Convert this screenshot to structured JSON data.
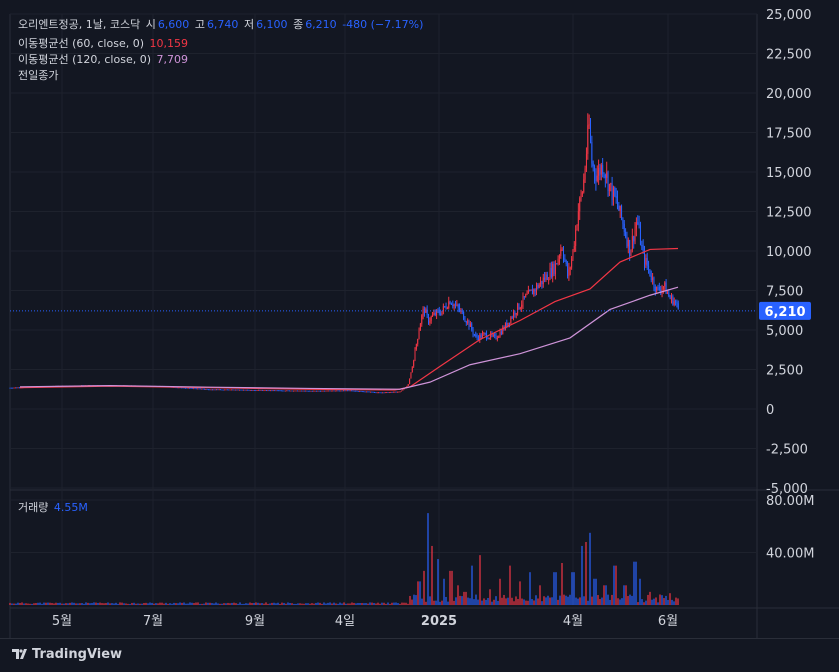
{
  "header": {
    "symbol": "오리엔트정공, 1날, 코스닥",
    "open_label": "시",
    "open": "6,600",
    "high_label": "고",
    "high": "6,740",
    "low_label": "저",
    "low": "6,100",
    "close_label": "종",
    "close": "6,210",
    "change": "-480 (−7.17%)"
  },
  "indicators": {
    "ma60_label": "이동평균선 (60, close, 0)",
    "ma60_value": "10,159",
    "ma120_label": "이동평균선 (120, close, 0)",
    "ma120_value": "7,709",
    "prev_close_label": "전일종가"
  },
  "volume_pane": {
    "label": "거래량",
    "value": "4.55M"
  },
  "price_tag": "6,210",
  "brand": "TradingView",
  "colors": {
    "up": "#2962ff",
    "down": "#f23645",
    "ma60": "#f23645",
    "ma120": "#ce93d8",
    "background": "#131722"
  },
  "chart_data": {
    "type": "candlestick",
    "price_axis": {
      "ylim": [
        -5000,
        25000
      ],
      "ticks": [
        "25,000",
        "22,500",
        "20,000",
        "17,500",
        "15,000",
        "12,500",
        "10,000",
        "7,500",
        "5,000",
        "2,500",
        "0",
        "-2,500",
        "-5,000"
      ]
    },
    "volume_axis": {
      "ticks": [
        "80.00M",
        "40.00M"
      ]
    },
    "x_ticks": [
      "5월",
      "7월",
      "9월",
      "4일",
      "2025",
      "4월",
      "6월"
    ],
    "price_points": [
      {
        "t": 0,
        "close": 1350
      },
      {
        "t": 40,
        "close": 1450
      },
      {
        "t": 80,
        "close": 1500
      },
      {
        "t": 120,
        "close": 1480
      },
      {
        "t": 150,
        "close": 1450
      },
      {
        "t": 200,
        "close": 1250
      },
      {
        "t": 250,
        "close": 1200
      },
      {
        "t": 300,
        "close": 1150
      },
      {
        "t": 340,
        "close": 1180
      },
      {
        "t": 370,
        "close": 1050
      },
      {
        "t": 390,
        "close": 1100
      },
      {
        "t": 398,
        "close": 1500
      },
      {
        "t": 402,
        "close": 2600
      },
      {
        "t": 406,
        "close": 4000
      },
      {
        "t": 410,
        "close": 5400
      },
      {
        "t": 414,
        "close": 6400
      },
      {
        "t": 418,
        "close": 5600
      },
      {
        "t": 425,
        "close": 6000
      },
      {
        "t": 432,
        "close": 6200
      },
      {
        "t": 440,
        "close": 6900
      },
      {
        "t": 450,
        "close": 6200
      },
      {
        "t": 458,
        "close": 5500
      },
      {
        "t": 466,
        "close": 4500
      },
      {
        "t": 475,
        "close": 4700
      },
      {
        "t": 485,
        "close": 4500
      },
      {
        "t": 495,
        "close": 5200
      },
      {
        "t": 505,
        "close": 6200
      },
      {
        "t": 515,
        "close": 7000
      },
      {
        "t": 525,
        "close": 7600
      },
      {
        "t": 535,
        "close": 8300
      },
      {
        "t": 545,
        "close": 9000
      },
      {
        "t": 552,
        "close": 10400
      },
      {
        "t": 558,
        "close": 8300
      },
      {
        "t": 563,
        "close": 10000
      },
      {
        "t": 568,
        "close": 12500
      },
      {
        "t": 573,
        "close": 14000
      },
      {
        "t": 576,
        "close": 16000
      },
      {
        "t": 579,
        "close": 18000
      },
      {
        "t": 582,
        "close": 15500
      },
      {
        "t": 587,
        "close": 14800
      },
      {
        "t": 593,
        "close": 15500
      },
      {
        "t": 600,
        "close": 14000
      },
      {
        "t": 607,
        "close": 13000
      },
      {
        "t": 614,
        "close": 11500
      },
      {
        "t": 620,
        "close": 10000
      },
      {
        "t": 627,
        "close": 12000
      },
      {
        "t": 633,
        "close": 9700
      },
      {
        "t": 640,
        "close": 8600
      },
      {
        "t": 647,
        "close": 7500
      },
      {
        "t": 654,
        "close": 7800
      },
      {
        "t": 660,
        "close": 7000
      },
      {
        "t": 665,
        "close": 6800
      },
      {
        "t": 669,
        "close": 6210
      }
    ],
    "ma60": [
      {
        "t": 10,
        "v": 1350
      },
      {
        "t": 100,
        "v": 1450
      },
      {
        "t": 200,
        "v": 1350
      },
      {
        "t": 300,
        "v": 1250
      },
      {
        "t": 385,
        "v": 1200
      },
      {
        "t": 400,
        "v": 1400
      },
      {
        "t": 430,
        "v": 2700
      },
      {
        "t": 470,
        "v": 4400
      },
      {
        "t": 510,
        "v": 5600
      },
      {
        "t": 545,
        "v": 6800
      },
      {
        "t": 580,
        "v": 7600
      },
      {
        "t": 610,
        "v": 9300
      },
      {
        "t": 640,
        "v": 10100
      },
      {
        "t": 668,
        "v": 10159
      }
    ],
    "ma120": [
      {
        "t": 10,
        "v": 1400
      },
      {
        "t": 100,
        "v": 1480
      },
      {
        "t": 200,
        "v": 1380
      },
      {
        "t": 300,
        "v": 1300
      },
      {
        "t": 390,
        "v": 1250
      },
      {
        "t": 420,
        "v": 1700
      },
      {
        "t": 460,
        "v": 2800
      },
      {
        "t": 510,
        "v": 3500
      },
      {
        "t": 560,
        "v": 4500
      },
      {
        "t": 600,
        "v": 6300
      },
      {
        "t": 640,
        "v": 7200
      },
      {
        "t": 668,
        "v": 7709
      }
    ],
    "volume_peaks": [
      {
        "t": 409,
        "v": 18
      },
      {
        "t": 414,
        "v": 26
      },
      {
        "t": 418,
        "v": 70
      },
      {
        "t": 422,
        "v": 45
      },
      {
        "t": 428,
        "v": 35
      },
      {
        "t": 434,
        "v": 20
      },
      {
        "t": 441,
        "v": 26
      },
      {
        "t": 448,
        "v": 15
      },
      {
        "t": 455,
        "v": 10
      },
      {
        "t": 462,
        "v": 30
      },
      {
        "t": 470,
        "v": 38
      },
      {
        "t": 480,
        "v": 12
      },
      {
        "t": 490,
        "v": 20
      },
      {
        "t": 500,
        "v": 30
      },
      {
        "t": 510,
        "v": 18
      },
      {
        "t": 520,
        "v": 25
      },
      {
        "t": 530,
        "v": 15
      },
      {
        "t": 545,
        "v": 25
      },
      {
        "t": 552,
        "v": 32
      },
      {
        "t": 563,
        "v": 25
      },
      {
        "t": 572,
        "v": 45
      },
      {
        "t": 576,
        "v": 48
      },
      {
        "t": 580,
        "v": 55
      },
      {
        "t": 585,
        "v": 20
      },
      {
        "t": 595,
        "v": 15
      },
      {
        "t": 605,
        "v": 30
      },
      {
        "t": 615,
        "v": 15
      },
      {
        "t": 625,
        "v": 33
      },
      {
        "t": 630,
        "v": 20
      },
      {
        "t": 640,
        "v": 10
      },
      {
        "t": 650,
        "v": 8
      },
      {
        "t": 660,
        "v": 9
      },
      {
        "t": 668,
        "v": 5
      }
    ]
  }
}
